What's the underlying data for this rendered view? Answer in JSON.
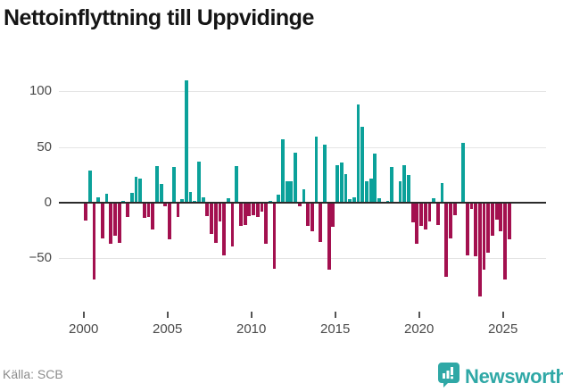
{
  "title": "Nettoinflyttning till Uppvidinge",
  "source": "Källa: SCB",
  "logo": {
    "name": "Newsworthy"
  },
  "colors": {
    "positive": "#0ba19a",
    "negative": "#a3104f",
    "accent": "#2fa8a6",
    "grid": "#e4e4e4",
    "zero_line": "#2b2b2b",
    "axis_text": "#4a4a4a"
  },
  "y_axis": {
    "tick_labels": [
      "100",
      "50",
      "0",
      "−50"
    ],
    "tick_values": [
      100,
      50,
      0,
      -50
    ]
  },
  "x_axis": {
    "tick_labels": [
      "2000",
      "2005",
      "2010",
      "2015",
      "2020",
      "2025"
    ],
    "tick_years": [
      2000,
      2005,
      2010,
      2015,
      2020,
      2025
    ]
  },
  "chart_data": {
    "type": "bar",
    "title": "Nettoinflyttning till Uppvidinge",
    "subtitle": "",
    "xlabel": "",
    "ylabel": "",
    "x_start": "2000 Q1",
    "x_end": "2025 Q2",
    "ylim": [
      -90,
      115
    ],
    "grid": true,
    "legend": false,
    "categories": [
      "2000 Q1",
      "2000 Q2",
      "2000 Q3",
      "2000 Q4",
      "2001 Q1",
      "2001 Q2",
      "2001 Q3",
      "2001 Q4",
      "2002 Q1",
      "2002 Q2",
      "2002 Q3",
      "2002 Q4",
      "2003 Q1",
      "2003 Q2",
      "2003 Q3",
      "2003 Q4",
      "2004 Q1",
      "2004 Q2",
      "2004 Q3",
      "2004 Q4",
      "2005 Q1",
      "2005 Q2",
      "2005 Q3",
      "2005 Q4",
      "2006 Q1",
      "2006 Q2",
      "2006 Q3",
      "2006 Q4",
      "2007 Q1",
      "2007 Q2",
      "2007 Q3",
      "2007 Q4",
      "2008 Q1",
      "2008 Q2",
      "2008 Q3",
      "2008 Q4",
      "2009 Q1",
      "2009 Q2",
      "2009 Q3",
      "2009 Q4",
      "2010 Q1",
      "2010 Q2",
      "2010 Q3",
      "2010 Q4",
      "2011 Q1",
      "2011 Q2",
      "2011 Q3",
      "2011 Q4",
      "2012 Q1",
      "2012 Q2",
      "2012 Q3",
      "2012 Q4",
      "2013 Q1",
      "2013 Q2",
      "2013 Q3",
      "2013 Q4",
      "2014 Q1",
      "2014 Q2",
      "2014 Q3",
      "2014 Q4",
      "2015 Q1",
      "2015 Q2",
      "2015 Q3",
      "2015 Q4",
      "2016 Q1",
      "2016 Q2",
      "2016 Q3",
      "2016 Q4",
      "2017 Q1",
      "2017 Q2",
      "2017 Q3",
      "2017 Q4",
      "2018 Q1",
      "2018 Q2",
      "2018 Q3",
      "2018 Q4",
      "2019 Q1",
      "2019 Q2",
      "2019 Q3",
      "2019 Q4",
      "2020 Q1",
      "2020 Q2",
      "2020 Q3",
      "2020 Q4",
      "2021 Q1",
      "2021 Q2",
      "2021 Q3",
      "2021 Q4",
      "2022 Q1",
      "2022 Q2",
      "2022 Q3",
      "2022 Q4",
      "2023 Q1",
      "2023 Q2",
      "2023 Q3",
      "2023 Q4",
      "2024 Q1",
      "2024 Q2",
      "2024 Q3",
      "2024 Q4",
      "2025 Q1",
      "2025 Q2"
    ],
    "values": [
      -16,
      29,
      -69,
      5,
      -32,
      8,
      -37,
      -30,
      -36,
      2,
      -13,
      9,
      23,
      22,
      -14,
      -13,
      -24,
      33,
      17,
      -3,
      -33,
      32,
      -13,
      3,
      110,
      10,
      2,
      37,
      5,
      -12,
      -28,
      -36,
      -17,
      -47,
      4,
      -39,
      33,
      -21,
      -20,
      -12,
      -11,
      -13,
      -8,
      -37,
      2,
      -59,
      7,
      57,
      19,
      19,
      45,
      -3,
      12,
      -21,
      -26,
      59,
      -35,
      52,
      -60,
      -22,
      34,
      36,
      26,
      3,
      5,
      88,
      68,
      19,
      22,
      44,
      4,
      0,
      2,
      32,
      0,
      19,
      34,
      25,
      -18,
      -37,
      -21,
      -24,
      -17,
      4,
      -20,
      18,
      -67,
      -32,
      -11,
      0,
      54,
      -47,
      -6,
      -48,
      -84,
      -60,
      -45,
      -30,
      -15,
      -26,
      -69,
      -33
    ]
  }
}
